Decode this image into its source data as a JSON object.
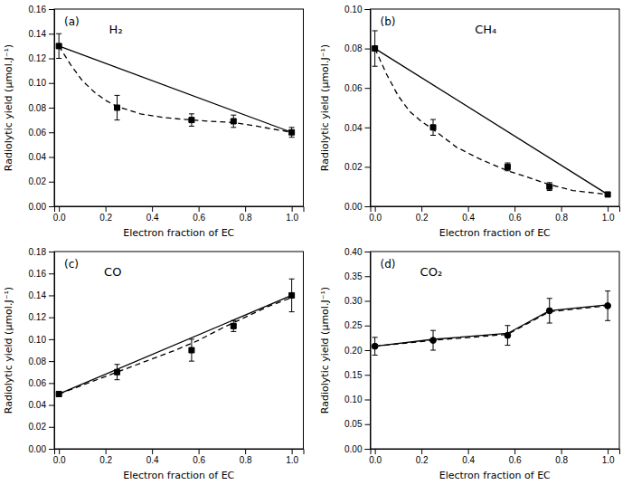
{
  "chart_data": [
    {
      "type": "line",
      "x_label": "Electron fraction of EC",
      "y_label": "Radiolytic yield (μmol.J⁻¹)",
      "annotations": [
        "(a)",
        "H₂"
      ],
      "grid": false,
      "xlim": [
        -0.02,
        1.05
      ],
      "xticks": [
        {
          "value": 0.0,
          "label": "0.0"
        },
        0.2,
        0.4,
        0.6,
        0.8,
        {
          "value": 1.0,
          "label": "1.0"
        }
      ],
      "ylim": [
        0.0,
        0.16
      ],
      "yticks": [
        {
          "value": 0.0,
          "label": "0.00"
        },
        0.02,
        0.04,
        0.06,
        0.08,
        {
          "value": 0.1,
          "label": "0.10"
        },
        0.12,
        0.14,
        0.16
      ],
      "series": [
        {
          "type": "line",
          "line_style": "solid",
          "color": "black",
          "x": [
            0.0,
            1.0
          ],
          "values": [
            0.13,
            0.06
          ]
        },
        {
          "type": "line",
          "line_style": "dashed",
          "color": "black",
          "x": [
            0.0,
            0.05,
            0.1,
            0.15,
            0.2,
            0.25,
            0.35,
            0.45,
            0.57,
            0.65,
            0.75,
            0.85,
            1.0
          ],
          "values": [
            0.13,
            0.115,
            0.102,
            0.093,
            0.086,
            0.081,
            0.075,
            0.072,
            0.07,
            0.069,
            0.068,
            0.065,
            0.06
          ]
        },
        {
          "type": "scatter",
          "marker": "square",
          "color": "black",
          "x": [
            0.0,
            0.25,
            0.57,
            0.75,
            1.0
          ],
          "values": [
            0.13,
            0.08,
            0.07,
            0.069,
            0.06
          ],
          "errors": [
            0.01,
            0.01,
            0.005,
            0.005,
            0.004
          ]
        }
      ]
    },
    {
      "type": "line",
      "x_label": "Electron fraction of EC",
      "y_label": "Radiolytic yield (μmol.J⁻¹)",
      "annotations": [
        "(b)",
        "CH₄"
      ],
      "grid": false,
      "xlim": [
        -0.02,
        1.05
      ],
      "xticks": [
        {
          "value": 0.0,
          "label": "0.0"
        },
        0.2,
        0.4,
        0.6,
        0.8,
        {
          "value": 1.0,
          "label": "1.0"
        }
      ],
      "ylim": [
        0.0,
        0.1
      ],
      "yticks": [
        {
          "value": 0.0,
          "label": "0.00"
        },
        0.02,
        0.04,
        0.06,
        0.08,
        {
          "value": 0.1,
          "label": "0.10"
        }
      ],
      "series": [
        {
          "type": "line",
          "line_style": "solid",
          "color": "black",
          "x": [
            0.0,
            1.0
          ],
          "values": [
            0.08,
            0.006
          ]
        },
        {
          "type": "line",
          "line_style": "dashed",
          "color": "black",
          "x": [
            0.0,
            0.05,
            0.1,
            0.15,
            0.2,
            0.25,
            0.35,
            0.45,
            0.57,
            0.65,
            0.75,
            0.85,
            1.0
          ],
          "values": [
            0.08,
            0.067,
            0.056,
            0.048,
            0.043,
            0.039,
            0.03,
            0.024,
            0.018,
            0.015,
            0.011,
            0.008,
            0.006
          ]
        },
        {
          "type": "scatter",
          "marker": "square",
          "color": "black",
          "x": [
            0.0,
            0.25,
            0.57,
            0.75,
            1.0
          ],
          "values": [
            0.08,
            0.04,
            0.02,
            0.01,
            0.006
          ],
          "errors": [
            0.009,
            0.004,
            0.002,
            0.002,
            0.001
          ]
        }
      ]
    },
    {
      "type": "line",
      "x_label": "Electron fraction of EC",
      "y_label": "Radiolytic yield (μmol.J⁻¹)",
      "annotations": [
        "(c)",
        "CO"
      ],
      "grid": false,
      "xlim": [
        -0.02,
        1.05
      ],
      "xticks": [
        {
          "value": 0.0,
          "label": "0.0"
        },
        0.2,
        0.4,
        0.6,
        0.8,
        {
          "value": 1.0,
          "label": "1.0"
        }
      ],
      "ylim": [
        0.0,
        0.18
      ],
      "yticks": [
        {
          "value": 0.0,
          "label": "0.00"
        },
        0.02,
        0.04,
        0.06,
        0.08,
        {
          "value": 0.1,
          "label": "0.10"
        },
        0.12,
        0.14,
        0.16,
        0.18
      ],
      "series": [
        {
          "type": "line",
          "line_style": "solid",
          "color": "black",
          "x": [
            0.0,
            1.0
          ],
          "values": [
            0.05,
            0.14
          ]
        },
        {
          "type": "line",
          "line_style": "dashed",
          "color": "black",
          "x": [
            0.0,
            0.1,
            0.2,
            0.3,
            0.4,
            0.5,
            0.6,
            0.7,
            0.8,
            0.9,
            1.0
          ],
          "values": [
            0.05,
            0.058,
            0.066,
            0.074,
            0.082,
            0.09,
            0.099,
            0.11,
            0.12,
            0.13,
            0.138
          ]
        },
        {
          "type": "scatter",
          "marker": "square",
          "color": "black",
          "x": [
            0.0,
            0.25,
            0.57,
            0.75,
            1.0
          ],
          "values": [
            0.05,
            0.07,
            0.09,
            0.112,
            0.14
          ],
          "errors": [
            0.002,
            0.007,
            0.01,
            0.005,
            0.015
          ]
        }
      ]
    },
    {
      "type": "line",
      "x_label": "Electron fraction of EC",
      "y_label": "Radiolytic yield (μmol.J⁻¹)",
      "annotations": [
        "(d)",
        "CO₂"
      ],
      "grid": false,
      "xlim": [
        -0.02,
        1.05
      ],
      "xticks": [
        {
          "value": 0.0,
          "label": "0.0"
        },
        0.2,
        0.4,
        0.6,
        0.8,
        {
          "value": 1.0,
          "label": "1.0"
        }
      ],
      "ylim": [
        0.0,
        0.4
      ],
      "yticks": [
        {
          "value": 0.0,
          "label": "0.00"
        },
        0.05,
        {
          "value": 0.1,
          "label": "0.10"
        },
        0.15,
        {
          "value": 0.2,
          "label": "0.20"
        },
        0.25,
        {
          "value": 0.3,
          "label": "0.30"
        },
        0.35,
        {
          "value": 0.4,
          "label": "0.40"
        }
      ],
      "series": [
        {
          "type": "line",
          "line_style": "solid",
          "color": "black",
          "x": [
            0.0,
            0.25,
            0.57,
            0.75,
            1.0
          ],
          "values": [
            0.208,
            0.222,
            0.234,
            0.28,
            0.292
          ]
        },
        {
          "type": "line",
          "line_style": "dashed",
          "color": "black",
          "x": [
            0.0,
            0.25,
            0.57,
            0.75,
            1.0
          ],
          "values": [
            0.208,
            0.22,
            0.232,
            0.278,
            0.29
          ]
        },
        {
          "type": "scatter",
          "marker": "circle",
          "color": "black",
          "x": [
            0.0,
            0.25,
            0.57,
            0.75,
            1.0
          ],
          "values": [
            0.208,
            0.22,
            0.23,
            0.28,
            0.29
          ],
          "errors": [
            0.018,
            0.02,
            0.02,
            0.025,
            0.03
          ]
        }
      ]
    }
  ]
}
